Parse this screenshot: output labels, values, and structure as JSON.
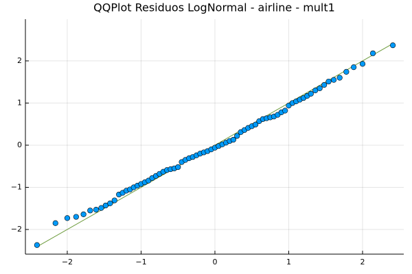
{
  "chart_data": {
    "type": "scatter",
    "title": "QQPlot Residuos LogNormal - airline - mult1",
    "x": [
      -2.41,
      -2.16,
      -2.0,
      -1.88,
      -1.78,
      -1.69,
      -1.61,
      -1.54,
      -1.48,
      -1.42,
      -1.36,
      -1.3,
      -1.25,
      -1.2,
      -1.15,
      -1.1,
      -1.05,
      -1.0,
      -0.95,
      -0.9,
      -0.85,
      -0.8,
      -0.75,
      -0.7,
      -0.65,
      -0.6,
      -0.55,
      -0.5,
      -0.45,
      -0.4,
      -0.35,
      -0.3,
      -0.25,
      -0.2,
      -0.15,
      -0.1,
      -0.05,
      0,
      0.05,
      0.1,
      0.15,
      0.2,
      0.25,
      0.3,
      0.35,
      0.4,
      0.45,
      0.5,
      0.55,
      0.6,
      0.65,
      0.7,
      0.75,
      0.8,
      0.85,
      0.9,
      0.95,
      1.0,
      1.05,
      1.1,
      1.15,
      1.2,
      1.25,
      1.3,
      1.36,
      1.42,
      1.48,
      1.54,
      1.61,
      1.69,
      1.78,
      1.88,
      2.0,
      2.14,
      2.41
    ],
    "values": [
      -2.37,
      -1.85,
      -1.73,
      -1.7,
      -1.64,
      -1.55,
      -1.53,
      -1.49,
      -1.43,
      -1.38,
      -1.31,
      -1.17,
      -1.13,
      -1.08,
      -1.05,
      -1.0,
      -0.96,
      -0.92,
      -0.88,
      -0.84,
      -0.78,
      -0.73,
      -0.68,
      -0.63,
      -0.59,
      -0.57,
      -0.55,
      -0.52,
      -0.4,
      -0.35,
      -0.31,
      -0.28,
      -0.24,
      -0.2,
      -0.17,
      -0.14,
      -0.1,
      -0.06,
      -0.02,
      0.02,
      0.06,
      0.1,
      0.13,
      0.22,
      0.31,
      0.36,
      0.41,
      0.45,
      0.49,
      0.57,
      0.62,
      0.64,
      0.66,
      0.68,
      0.72,
      0.78,
      0.82,
      0.94,
      1.0,
      1.04,
      1.08,
      1.12,
      1.17,
      1.22,
      1.3,
      1.35,
      1.43,
      1.51,
      1.55,
      1.6,
      1.74,
      1.85,
      1.93,
      2.18,
      2.37
    ],
    "color": "#009af9",
    "reference_line": {
      "x": [
        -2.41,
        2.41
      ],
      "values": [
        -2.41,
        2.41
      ],
      "color": "#6b9a3a"
    },
    "xlim": [
      -2.567,
      2.558
    ],
    "ylim": [
      -2.585,
      2.99
    ],
    "xticks": [
      {
        "value": -2,
        "label": "−2"
      },
      {
        "value": -1,
        "label": "−1"
      },
      0,
      1,
      2
    ],
    "yticks": [
      {
        "value": -2,
        "label": "−2"
      },
      {
        "value": -1,
        "label": "−1"
      },
      0,
      1,
      2
    ],
    "grid": true
  }
}
